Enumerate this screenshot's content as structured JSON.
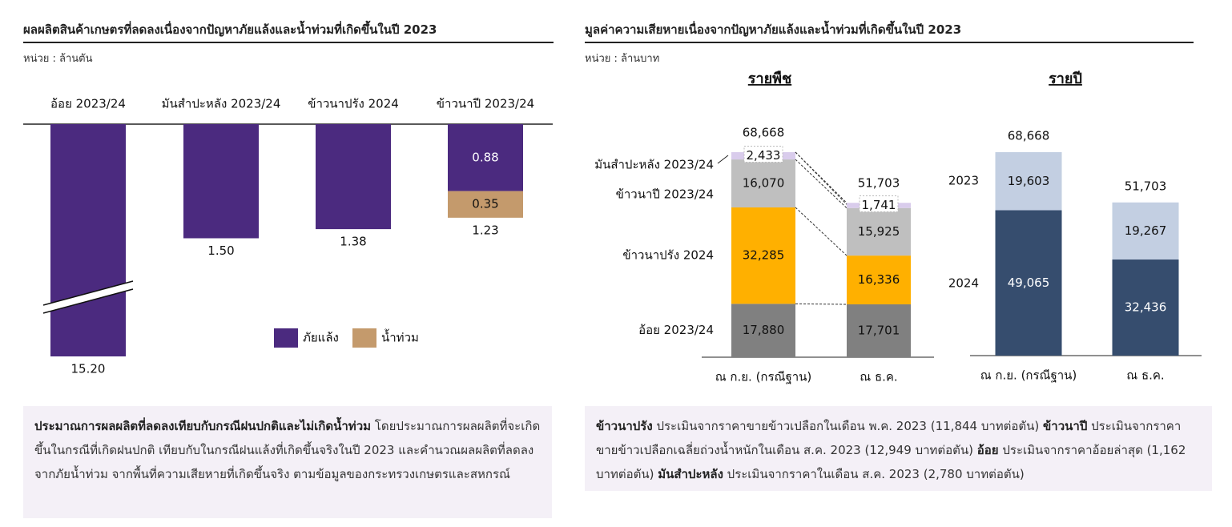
{
  "left": {
    "title": "ผลผลิตสินค้าเกษตรที่ลดลงเนื่องจากปัญหาภัยแล้งและน้ำท่วมที่เกิดขึ้นในปี 2023",
    "unit": "หน่วย : ล้านตัน",
    "note": {
      "bold": "ประมาณการผลผลิตที่ลดลงเทียบกับกรณีฝนปกติและไม่เกิดน้ำท่วม",
      "text": " โดยประมาณการผลผลิตที่จะเกิดขึ้นในกรณีที่เกิดฝนปกติ เทียบกับในกรณีฝนแล้งที่เกิดขึ้นจริงในปี 2023 และคำนวณผลผลิตที่ลดลงจากภัยน้ำท่วม จากพื้นที่ความเสียหายที่เกิดขึ้นจริง ตามข้อมูลของกระทรวงเกษตรและสหกรณ์"
    }
  },
  "right": {
    "title": "มูลค่าความเสียหายเนื่องจากปัญหาภัยแล้งและน้ำท่วมที่เกิดขึ้นในปี 2023",
    "unit": "หน่วย : ล้านบาท",
    "note": [
      {
        "bold": "ข้าวนาปรัง",
        "text": " ประเมินจากราคาขายข้าวเปลือกในเดือน พ.ค. 2023 (11,844 บาทต่อตัน) "
      },
      {
        "bold": "ข้าวนาปี",
        "text": " ประเมินจากราคาขายข้าวเปลือกเฉลี่ยถ่วงน้ำหนักในเดือน ส.ค. 2023 (12,949 บาทต่อตัน) "
      },
      {
        "bold": "อ้อย",
        "text": " ประเมินจากราคาอ้อยล่าสุด (1,162 บาทต่อตัน) "
      },
      {
        "bold": "มันสำปะหลัง",
        "text": " ประเมินจากราคาในเดือน ส.ค. 2023 (2,780 บาทต่อตัน)"
      }
    ]
  },
  "chart_data": [
    {
      "type": "bar",
      "orientation": "downward stacked",
      "categories": [
        "อ้อย 2023/24",
        "มันสำปะหลัง 2023/24",
        "ข้าวนาปรัง 2024",
        "ข้าวนาปี 2023/24"
      ],
      "series": [
        {
          "name": "ภัยแล้ง",
          "values": [
            15.2,
            1.5,
            1.38,
            0.88
          ],
          "color": "#4b2a7f"
        },
        {
          "name": "น้ำท่วม",
          "values": [
            0,
            0,
            0,
            0.35
          ],
          "color": "#c49a6c"
        }
      ],
      "totals": [
        "15.20",
        "1.50",
        "1.38",
        "1.23"
      ],
      "segment_labels": [
        [
          "",
          ""
        ],
        [
          "",
          ""
        ],
        [
          "",
          ""
        ],
        [
          "0.88",
          "0.35"
        ]
      ],
      "axis_break": true,
      "legend": "bottom-right"
    },
    {
      "type": "bar",
      "stacked": true,
      "heading": "รายพืช",
      "categories": [
        "ณ ก.ย. (กรณีฐาน)",
        "ณ ธ.ค."
      ],
      "series": [
        {
          "name": "อ้อย 2023/24",
          "values": [
            17880,
            17701
          ],
          "labels": [
            "17,880",
            "17,701"
          ],
          "color": "#808080"
        },
        {
          "name": "ข้าวนาปรัง 2024",
          "values": [
            32285,
            16336
          ],
          "labels": [
            "32,285",
            "16,336"
          ],
          "color": "#ffb000"
        },
        {
          "name": "ข้าวนาปี 2023/24",
          "values": [
            16070,
            15925
          ],
          "labels": [
            "16,070",
            "15,925"
          ],
          "color": "#bfbfbf"
        },
        {
          "name": "มันสำปะหลัง 2023/24",
          "values": [
            2433,
            1741
          ],
          "labels": [
            "2,433",
            "1,741"
          ],
          "color": "#d9ccec"
        }
      ],
      "totals": [
        "68,668",
        "51,703"
      ],
      "legend": "left labels"
    },
    {
      "type": "bar",
      "stacked": true,
      "heading": "รายปี",
      "categories": [
        "ณ ก.ย. (กรณีฐาน)",
        "ณ ธ.ค."
      ],
      "series": [
        {
          "name": "2024",
          "values": [
            49065,
            32436
          ],
          "labels": [
            "49,065",
            "32,436"
          ],
          "color": "#364d6e"
        },
        {
          "name": "2023",
          "values": [
            19603,
            19267
          ],
          "labels": [
            "19,603",
            "19,267"
          ],
          "color": "#c3cfe2"
        }
      ],
      "totals": [
        "68,668",
        "51,703"
      ],
      "legend": "left labels"
    }
  ]
}
